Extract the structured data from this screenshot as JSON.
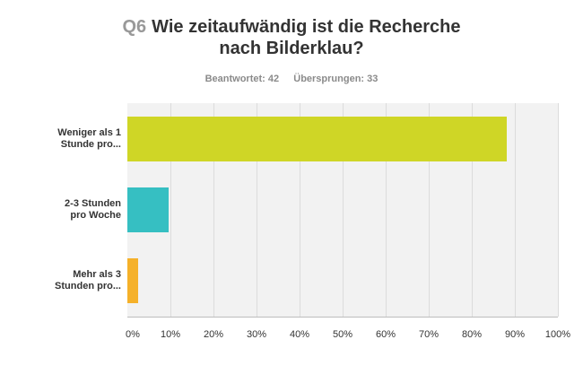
{
  "header": {
    "question_number": "Q6",
    "title_line1": "Wie zeitaufwändig ist die Recherche",
    "title_line2": "nach Bilderklau?",
    "answered": "Beantwortet: 42",
    "skipped": "Übersprungen: 33"
  },
  "chart_data": {
    "type": "bar",
    "orientation": "horizontal",
    "categories": [
      [
        "Weniger als 1",
        "Stunde pro..."
      ],
      [
        "2-3 Stunden",
        "pro Woche"
      ],
      [
        "Mehr als 3",
        "Stunden pro..."
      ]
    ],
    "values": [
      88.1,
      9.5,
      2.4
    ],
    "colors": [
      "#cfd626",
      "#36bfc2",
      "#f5b12a"
    ],
    "xlim": [
      0,
      100
    ],
    "x_ticks": [
      "0%",
      "10%",
      "20%",
      "30%",
      "40%",
      "50%",
      "60%",
      "70%",
      "80%",
      "90%",
      "100%"
    ],
    "grid": true
  }
}
